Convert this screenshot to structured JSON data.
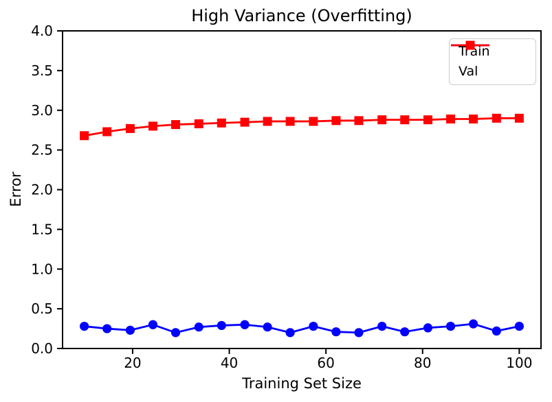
{
  "title": "High Variance (Overfitting)",
  "chart_data": {
    "type": "line",
    "title": "High Variance (Overfitting)",
    "xlabel": "Training Set Size",
    "ylabel": "Error",
    "xlim": [
      5.5,
      104.5
    ],
    "ylim": [
      0.0,
      4.0
    ],
    "grid": false,
    "legend_position": "upper right",
    "xticks": [
      20,
      40,
      60,
      80,
      100
    ],
    "xtick_labels": [
      "20",
      "40",
      "60",
      "80",
      "100"
    ],
    "yticks": [
      0.0,
      0.5,
      1.0,
      1.5,
      2.0,
      2.5,
      3.0,
      3.5,
      4.0
    ],
    "ytick_labels": [
      "0.0",
      "0.5",
      "1.0",
      "1.5",
      "2.0",
      "2.5",
      "3.0",
      "3.5",
      "4.0"
    ],
    "x": [
      10,
      14.7,
      19.5,
      24.2,
      28.9,
      33.7,
      38.4,
      43.2,
      47.9,
      52.6,
      57.4,
      62.1,
      66.8,
      71.6,
      76.3,
      81.1,
      85.8,
      90.5,
      95.3,
      100
    ],
    "series": [
      {
        "name": "Train",
        "marker": "circle",
        "color": "#0000ff",
        "values": [
          0.28,
          0.25,
          0.23,
          0.3,
          0.2,
          0.27,
          0.29,
          0.3,
          0.27,
          0.2,
          0.28,
          0.21,
          0.2,
          0.28,
          0.21,
          0.26,
          0.28,
          0.31,
          0.22,
          0.28
        ]
      },
      {
        "name": "Val",
        "marker": "square",
        "color": "#ff0000",
        "values": [
          2.68,
          2.73,
          2.77,
          2.8,
          2.82,
          2.83,
          2.84,
          2.85,
          2.86,
          2.86,
          2.86,
          2.87,
          2.87,
          2.88,
          2.88,
          2.88,
          2.89,
          2.89,
          2.9,
          2.9
        ]
      }
    ],
    "colors": {
      "axis": "#000000",
      "background": "#ffffff",
      "legend_border": "#cccccc"
    }
  }
}
